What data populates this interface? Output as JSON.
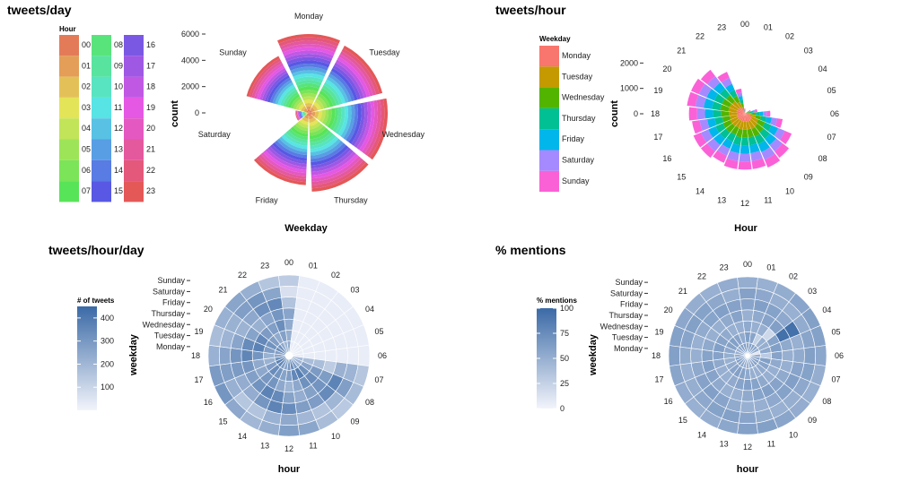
{
  "chart_data": [
    {
      "id": "tweets-day",
      "type": "polar-bar",
      "title": "tweets/day",
      "xlabel": "Weekday",
      "ylabel": "count",
      "categories": [
        "Monday",
        "Tuesday",
        "Wednesday",
        "Thursday",
        "Friday",
        "Saturday",
        "Sunday"
      ],
      "values": [
        6000,
        5800,
        6000,
        6000,
        5500,
        1000,
        4900
      ],
      "fill_by": "hour",
      "yticks": [
        0,
        2000,
        4000,
        6000
      ],
      "ytick_labels": [
        "0",
        "2000",
        "4000",
        "6000"
      ],
      "legend": {
        "title": "Hour",
        "items": [
          "00",
          "01",
          "02",
          "03",
          "04",
          "05",
          "06",
          "07",
          "08",
          "09",
          "10",
          "11",
          "12",
          "13",
          "14",
          "15",
          "16",
          "17",
          "18",
          "19",
          "20",
          "21",
          "22",
          "23"
        ]
      }
    },
    {
      "id": "tweets-hour",
      "type": "polar-bar",
      "title": "tweets/hour",
      "xlabel": "Hour",
      "ylabel": "count",
      "categories": [
        "00",
        "01",
        "02",
        "03",
        "04",
        "05",
        "06",
        "07",
        "08",
        "09",
        "10",
        "11",
        "12",
        "13",
        "14",
        "15",
        "16",
        "17",
        "18",
        "19",
        "20",
        "21",
        "22",
        "23"
      ],
      "values": [
        200,
        50,
        30,
        30,
        250,
        500,
        1000,
        1500,
        2000,
        2200,
        2300,
        2200,
        2200,
        2200,
        2100,
        2200,
        2200,
        2100,
        2200,
        2300,
        2300,
        2200,
        1800,
        1000
      ],
      "fill_by": "weekday",
      "yticks": [
        0,
        1000,
        2000
      ],
      "ytick_labels": [
        "0",
        "1000",
        "2000"
      ],
      "legend": {
        "title": "Weekday",
        "items": [
          "Monday",
          "Tuesday",
          "Wednesday",
          "Thursday",
          "Friday",
          "Saturday",
          "Sunday"
        ]
      }
    },
    {
      "id": "tweets-hour-day",
      "type": "polar-heatmap",
      "title": "tweets/hour/day",
      "xlabel": "hour",
      "ylabel": "weekday",
      "hours": [
        "00",
        "01",
        "02",
        "03",
        "04",
        "05",
        "06",
        "07",
        "08",
        "09",
        "10",
        "11",
        "12",
        "13",
        "14",
        "15",
        "16",
        "17",
        "18",
        "19",
        "20",
        "21",
        "22",
        "23"
      ],
      "weekdays": [
        "Monday",
        "Tuesday",
        "Wednesday",
        "Thursday",
        "Friday",
        "Saturday",
        "Sunday"
      ],
      "range": [
        0,
        450
      ],
      "legend": {
        "title": "# of tweets",
        "ticks": [
          "100",
          "200",
          "300",
          "400"
        ],
        "tick_values": [
          100,
          200,
          300,
          400
        ]
      }
    },
    {
      "id": "pct-mentions",
      "type": "polar-heatmap",
      "title": "% mentions",
      "xlabel": "hour",
      "ylabel": "weekday",
      "hours": [
        "00",
        "01",
        "02",
        "03",
        "04",
        "05",
        "06",
        "07",
        "08",
        "09",
        "10",
        "11",
        "12",
        "13",
        "14",
        "15",
        "16",
        "17",
        "18",
        "19",
        "20",
        "21",
        "22",
        "23"
      ],
      "weekdays": [
        "Monday",
        "Tuesday",
        "Wednesday",
        "Thursday",
        "Friday",
        "Saturday",
        "Sunday"
      ],
      "range": [
        0,
        100
      ],
      "legend": {
        "title": "% mentions",
        "ticks": [
          "0",
          "25",
          "50",
          "75",
          "100"
        ],
        "tick_values": [
          0,
          25,
          50,
          75,
          100
        ]
      }
    }
  ],
  "colors": {
    "blue_low": "#f2f4fb",
    "blue_high": "#3b6aa6",
    "weekday_palette": [
      "#f8766d",
      "#c49a00",
      "#53b400",
      "#00c094",
      "#00b6eb",
      "#a58aff",
      "#fb61d7"
    ]
  }
}
